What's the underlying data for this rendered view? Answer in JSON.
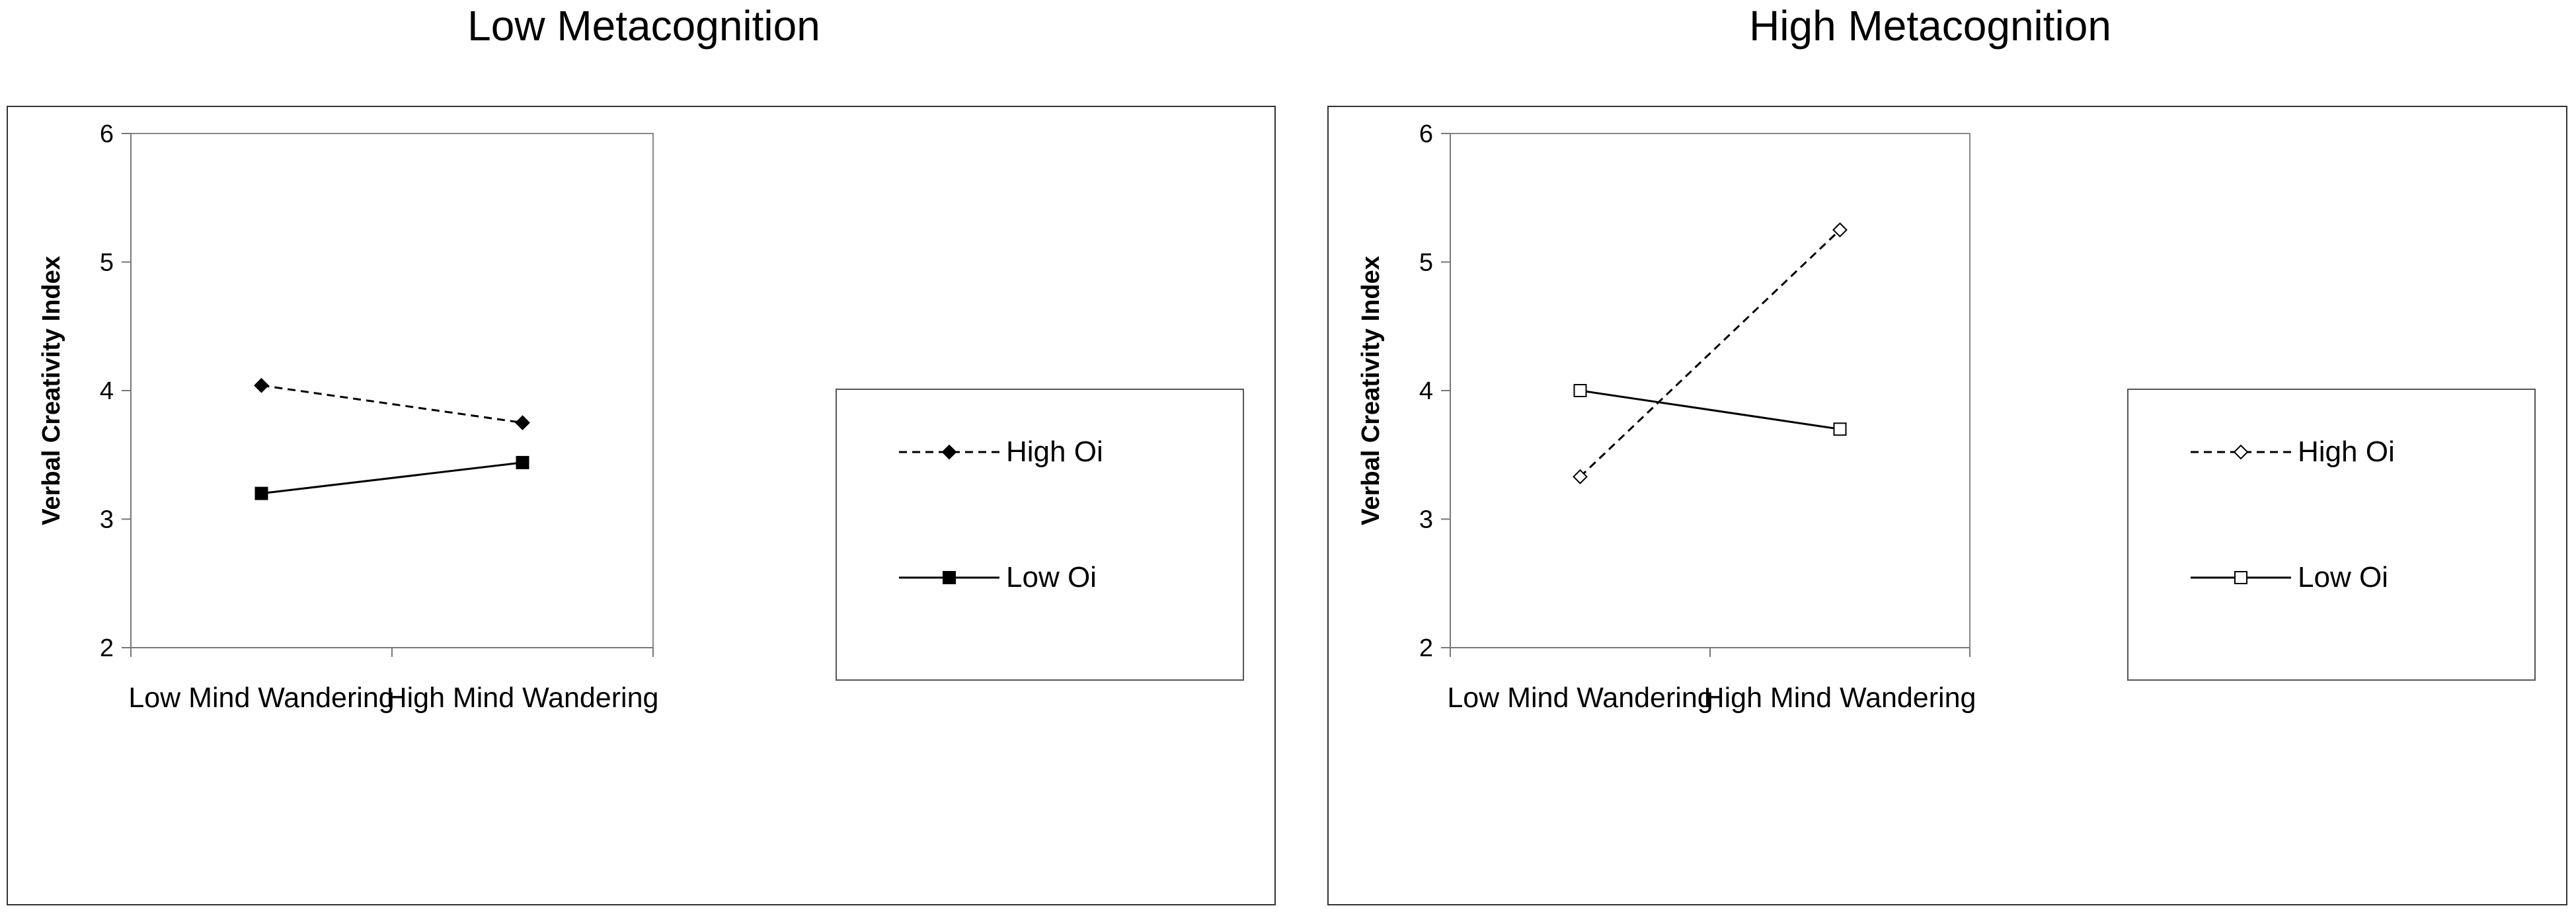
{
  "chart_data": [
    {
      "type": "line",
      "title": "Low Metacognition",
      "ylabel": "Verbal Creativity Index",
      "xlabel": "",
      "categories": [
        "Low Mind Wandering",
        "High Mind Wandering"
      ],
      "ylim": [
        2,
        6
      ],
      "yticks": [
        2,
        3,
        4,
        5,
        6
      ],
      "grid": false,
      "legend_position": "right",
      "series": [
        {
          "name": "High Oi",
          "values": [
            4.04,
            3.75
          ],
          "line_style": "dashed",
          "marker": "diamond",
          "marker_fill": "filled"
        },
        {
          "name": "Low Oi",
          "values": [
            3.2,
            3.44
          ],
          "line_style": "solid",
          "marker": "square",
          "marker_fill": "filled"
        }
      ]
    },
    {
      "type": "line",
      "title": "High Metacognition",
      "ylabel": "Verbal Creativity Index",
      "xlabel": "",
      "categories": [
        "Low Mind Wandering",
        "High Mind Wandering"
      ],
      "ylim": [
        2,
        6
      ],
      "yticks": [
        2,
        3,
        4,
        5,
        6
      ],
      "grid": false,
      "legend_position": "right",
      "series": [
        {
          "name": "High Oi",
          "values": [
            3.33,
            5.25
          ],
          "line_style": "dashed",
          "marker": "diamond",
          "marker_fill": "hollow"
        },
        {
          "name": "Low Oi",
          "values": [
            4.0,
            3.7
          ],
          "line_style": "solid",
          "marker": "square",
          "marker_fill": "hollow"
        }
      ]
    }
  ]
}
